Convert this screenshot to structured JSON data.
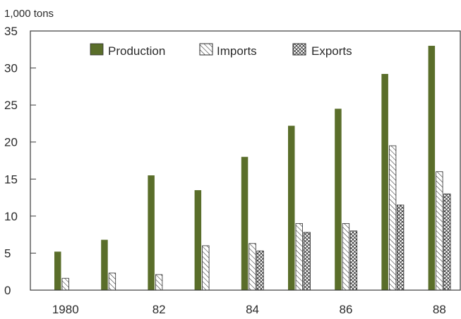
{
  "chart_data": {
    "type": "bar",
    "unit_label": "1,000  tons",
    "x": [
      1980,
      1981,
      1982,
      1983,
      1984,
      1985,
      1986,
      1987,
      1988
    ],
    "x_tick_labels": [
      "1980",
      "",
      "82",
      "",
      "84",
      "",
      "86",
      "",
      "88"
    ],
    "series": [
      {
        "name": "Production",
        "values": [
          5.2,
          6.8,
          15.5,
          13.5,
          18.0,
          22.2,
          24.5,
          29.2,
          33.0
        ]
      },
      {
        "name": "Imports",
        "values": [
          1.6,
          2.3,
          2.1,
          6.0,
          6.3,
          9.0,
          9.0,
          19.5,
          16.0
        ]
      },
      {
        "name": "Exports",
        "values": [
          0,
          0,
          0,
          0,
          5.3,
          7.8,
          8.0,
          11.5,
          13.0
        ]
      }
    ],
    "ylim": [
      0,
      35
    ],
    "y_ticks": [
      0,
      5,
      10,
      15,
      20,
      25,
      30,
      35
    ],
    "legend_position": "top",
    "grid": false,
    "colors": {
      "Production": "#5a6e2a",
      "Imports": "#ffffff",
      "Exports": "#ffffff"
    }
  }
}
